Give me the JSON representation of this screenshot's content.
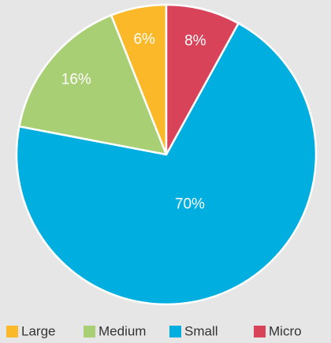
{
  "chart_data": {
    "type": "pie",
    "categories": [
      "Large",
      "Medium",
      "Small",
      "Micro"
    ],
    "values": [
      6,
      16,
      70,
      8
    ],
    "value_labels": [
      "6%",
      "16%",
      "70%",
      "8%"
    ],
    "colors": [
      "#fbb829",
      "#a9cf74",
      "#00aee0",
      "#d8435a"
    ]
  }
}
